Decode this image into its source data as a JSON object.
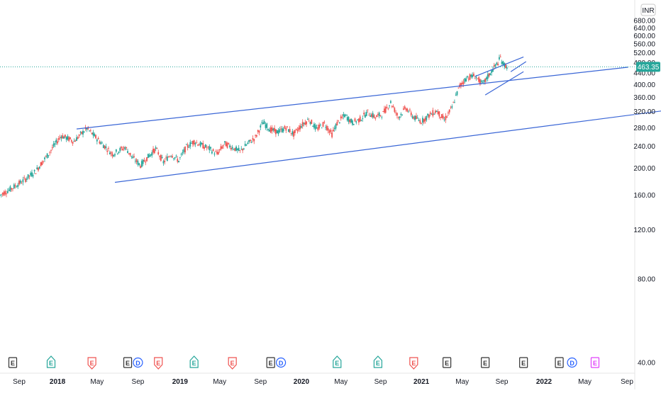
{
  "currency_label": "INR",
  "last_price_label": "463.35",
  "colors": {
    "up": "#26a69a",
    "down": "#ef5350",
    "trendline": "#3a66d6",
    "price_line": "#26a69a",
    "axis_text": "#131722",
    "earnings_gray": "#333333",
    "earnings_green": "#26a69a",
    "earnings_red": "#ef5350",
    "dividend_blue": "#2962ff",
    "earnings_magenta": "#e040fb"
  },
  "chart_data": {
    "type": "candlestick",
    "y_range": [
      30,
      720
    ],
    "y_scale": "log",
    "y_ticks": [
      40,
      80,
      120,
      160,
      200,
      240,
      280,
      320,
      360,
      400,
      440,
      480,
      520,
      560,
      600,
      640,
      680
    ],
    "y_tick_labels": [
      "40.00",
      "80.00",
      "120.00",
      "160.00",
      "200.00",
      "240.00",
      "280.00",
      "320.00",
      "360.00",
      "400.00",
      "440.00",
      "480.00",
      "520.00",
      "560.00",
      "600.00",
      "640.00",
      "680.00"
    ],
    "x_labels": [
      "Sep",
      "2018",
      "May",
      "Sep",
      "2019",
      "May",
      "Sep",
      "2020",
      "May",
      "Sep",
      "2021",
      "May",
      "Sep",
      "2022",
      "May",
      "Sep"
    ],
    "x_label_bold": [
      false,
      true,
      false,
      false,
      true,
      false,
      false,
      true,
      false,
      false,
      true,
      false,
      false,
      true,
      false,
      false
    ],
    "last_price": 463.35,
    "price_path": [
      [
        0,
        160
      ],
      [
        4,
        168
      ],
      [
        9,
        180
      ],
      [
        14,
        195
      ],
      [
        19,
        225
      ],
      [
        24,
        262
      ],
      [
        29,
        250
      ],
      [
        34,
        278
      ],
      [
        39,
        250
      ],
      [
        44,
        225
      ],
      [
        49,
        238
      ],
      [
        52,
        218
      ],
      [
        55,
        205
      ],
      [
        58,
        220
      ],
      [
        61,
        235
      ],
      [
        64,
        210
      ],
      [
        67,
        225
      ],
      [
        70,
        213
      ],
      [
        73,
        238
      ],
      [
        76,
        250
      ],
      [
        79,
        242
      ],
      [
        82,
        235
      ],
      [
        85,
        225
      ],
      [
        88,
        245
      ],
      [
        91,
        238
      ],
      [
        94,
        230
      ],
      [
        97,
        245
      ],
      [
        100,
        258
      ],
      [
        103,
        292
      ],
      [
        106,
        275
      ],
      [
        109,
        270
      ],
      [
        112,
        280
      ],
      [
        115,
        265
      ],
      [
        118,
        285
      ],
      [
        121,
        300
      ],
      [
        124,
        276
      ],
      [
        127,
        290
      ],
      [
        130,
        265
      ],
      [
        132,
        290
      ],
      [
        135,
        310
      ],
      [
        138,
        292
      ],
      [
        141,
        300
      ],
      [
        144,
        318
      ],
      [
        147,
        305
      ],
      [
        150,
        315
      ],
      [
        153,
        345
      ],
      [
        156,
        305
      ],
      [
        159,
        330
      ],
      [
        162,
        305
      ],
      [
        165,
        295
      ],
      [
        168,
        310
      ],
      [
        171,
        322
      ],
      [
        174,
        298
      ],
      [
        177,
        330
      ],
      [
        180,
        395
      ],
      [
        183,
        425
      ],
      [
        186,
        430
      ],
      [
        189,
        400
      ],
      [
        192,
        440
      ],
      [
        195,
        480
      ],
      [
        196,
        500
      ],
      [
        197,
        475
      ],
      [
        199,
        463
      ]
    ],
    "trendlines": [
      {
        "name": "channel-upper",
        "p1": [
          30,
          277
        ],
        "p2": [
          246,
          462
        ]
      },
      {
        "name": "channel-lower",
        "p1": [
          45,
          178
        ],
        "p2": [
          300,
          360
        ]
      },
      {
        "name": "wedge-upper",
        "p1": [
          186,
          428
        ],
        "p2": [
          205,
          503
        ]
      },
      {
        "name": "wedge-lower",
        "p1": [
          190,
          367
        ],
        "p2": [
          205,
          445
        ]
      },
      {
        "name": "wedge-upper-inner",
        "p1": [
          200,
          445
        ],
        "p2": [
          206,
          484
        ]
      }
    ],
    "events": [
      {
        "t": 5,
        "kind": "E",
        "color": "gray"
      },
      {
        "t": 20,
        "kind": "E",
        "color": "green"
      },
      {
        "t": 36,
        "kind": "E",
        "color": "red"
      },
      {
        "t": 50,
        "kind": "E",
        "color": "gray"
      },
      {
        "t": 54,
        "kind": "D",
        "color": "blue"
      },
      {
        "t": 62,
        "kind": "E",
        "color": "red"
      },
      {
        "t": 76,
        "kind": "E",
        "color": "green"
      },
      {
        "t": 91,
        "kind": "E",
        "color": "red"
      },
      {
        "t": 106,
        "kind": "E",
        "color": "gray"
      },
      {
        "t": 110,
        "kind": "D",
        "color": "blue"
      },
      {
        "t": 132,
        "kind": "E",
        "color": "green"
      },
      {
        "t": 148,
        "kind": "E",
        "color": "green"
      },
      {
        "t": 162,
        "kind": "E",
        "color": "red"
      },
      {
        "t": 175,
        "kind": "E",
        "color": "gray"
      },
      {
        "t": 190,
        "kind": "E",
        "color": "gray"
      },
      {
        "t": 205,
        "kind": "E",
        "color": "gray"
      },
      {
        "t": 219,
        "kind": "E",
        "color": "gray"
      },
      {
        "t": 224,
        "kind": "D",
        "color": "blue"
      },
      {
        "t": 233,
        "kind": "E",
        "color": "magenta"
      }
    ]
  }
}
